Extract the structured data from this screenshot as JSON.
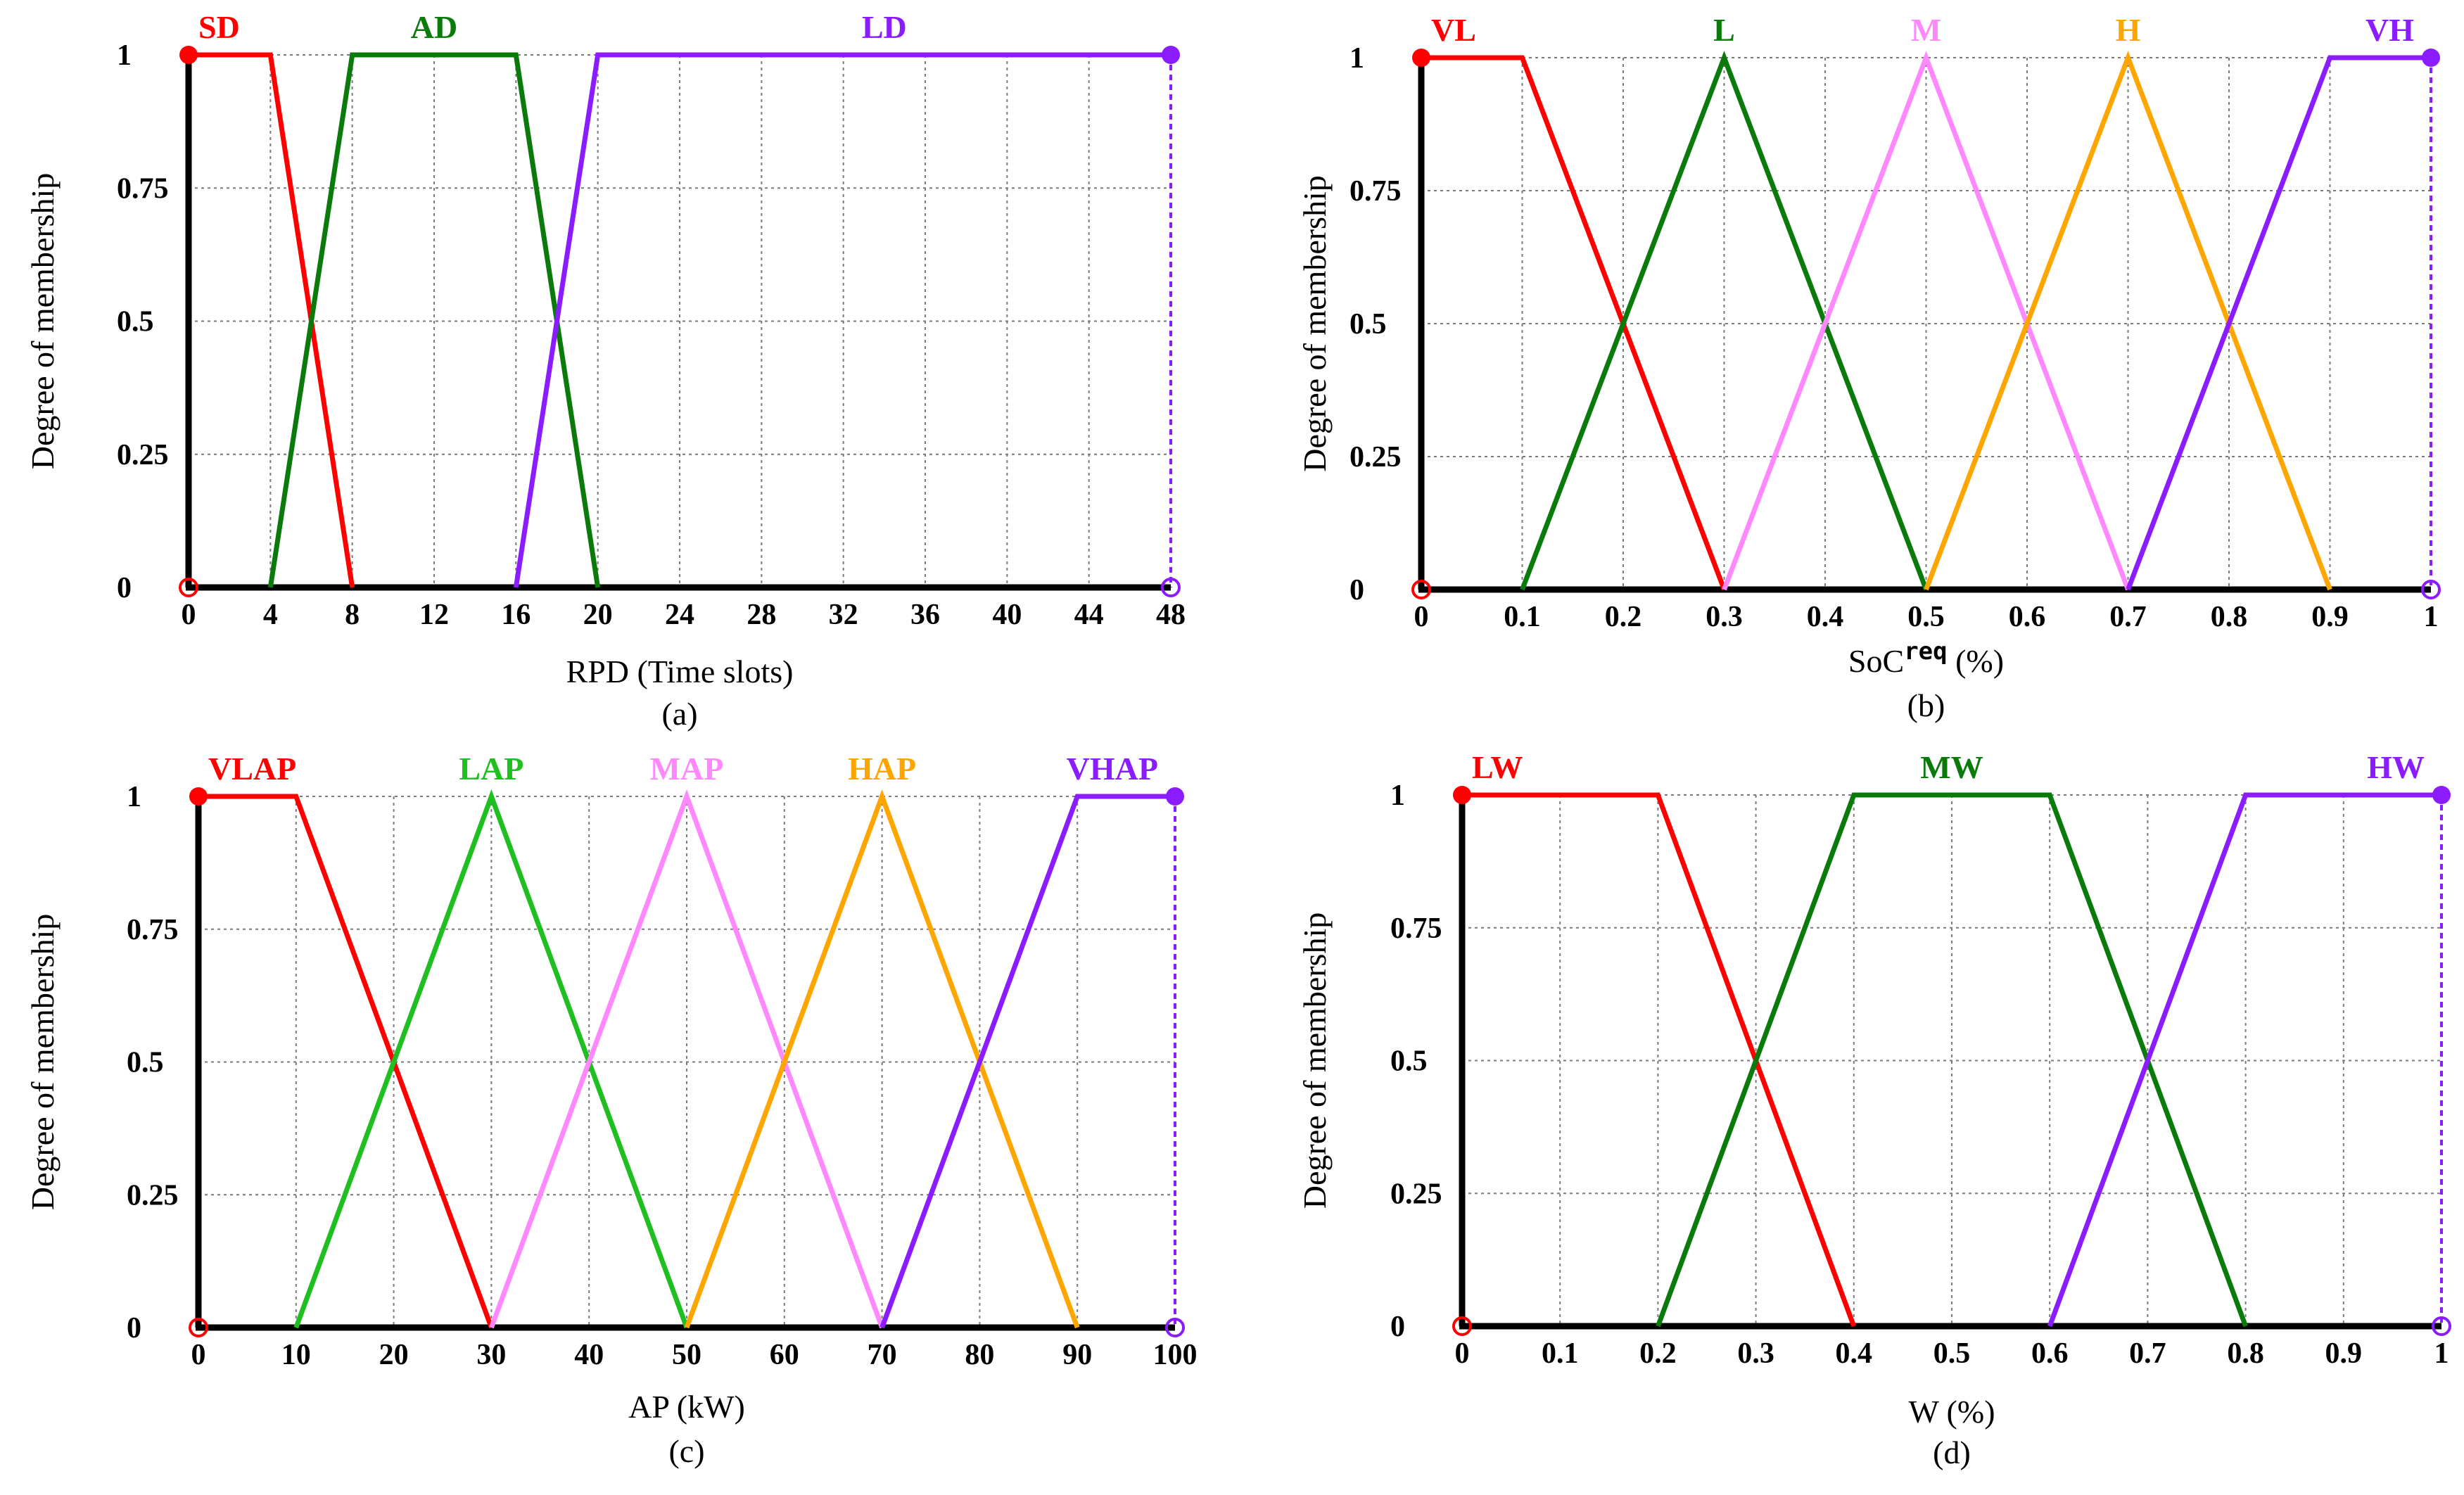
{
  "chart_data": [
    {
      "type": "line",
      "panel_label": "(a)",
      "title": "",
      "xlabel": "RPD (Time slots)",
      "ylabel": "Degree of membership",
      "xlim": [
        0,
        48
      ],
      "ylim": [
        0,
        1
      ],
      "x_tick_mode": "categorical",
      "x_ticks": [
        0,
        4,
        8,
        12,
        16,
        20,
        24,
        28,
        32,
        36,
        40,
        44,
        48
      ],
      "x_tick_labels": [
        "0",
        "4",
        "8",
        "12",
        "16",
        "20",
        "24",
        "28",
        "32",
        "36",
        "40",
        "44",
        "48"
      ],
      "y_ticks": [
        0,
        0.25,
        0.5,
        0.75,
        1
      ],
      "y_tick_labels": [
        "0",
        "0.25",
        "0.5",
        "0.75",
        "1"
      ],
      "grid": true,
      "series": [
        {
          "name": "SD",
          "color": "#ff0000",
          "x": [
            0,
            4,
            8
          ],
          "y": [
            1,
            1,
            0
          ]
        },
        {
          "name": "AD",
          "color": "#0a7a0a",
          "x": [
            4,
            8,
            16,
            20
          ],
          "y": [
            0,
            1,
            1,
            0
          ]
        },
        {
          "name": "LD",
          "color": "#8a1cff",
          "x": [
            16,
            20,
            48
          ],
          "y": [
            0,
            1,
            1
          ]
        }
      ]
    },
    {
      "type": "line",
      "panel_label": "(b)",
      "title": "",
      "xlabel_main": "SoC",
      "xlabel_sup": "req",
      "xlabel_tail": " (%)",
      "ylabel": "Degree of membership",
      "xlim": [
        0,
        1
      ],
      "ylim": [
        0,
        1
      ],
      "x_tick_mode": "linear",
      "x_ticks": [
        0,
        0.1,
        0.2,
        0.3,
        0.4,
        0.5,
        0.6,
        0.7,
        0.8,
        0.9,
        1
      ],
      "x_tick_labels": [
        "0",
        "0.1",
        "0.2",
        "0.3",
        "0.4",
        "0.5",
        "0.6",
        "0.7",
        "0.8",
        "0.9",
        "1"
      ],
      "y_ticks": [
        0,
        0.25,
        0.5,
        0.75,
        1
      ],
      "y_tick_labels": [
        "0",
        "0.25",
        "0.5",
        "0.75",
        "1"
      ],
      "grid": true,
      "series": [
        {
          "name": "VL",
          "color": "#ff0000",
          "x": [
            0,
            0.1,
            0.3
          ],
          "y": [
            1,
            1,
            0
          ]
        },
        {
          "name": "L",
          "color": "#0a7a0a",
          "x": [
            0.1,
            0.3,
            0.5
          ],
          "y": [
            0,
            1,
            0
          ]
        },
        {
          "name": "M",
          "color": "#ff88ff",
          "x": [
            0.3,
            0.5,
            0.7
          ],
          "y": [
            0,
            1,
            0
          ]
        },
        {
          "name": "H",
          "color": "#ffa500",
          "x": [
            0.5,
            0.7,
            0.9
          ],
          "y": [
            0,
            1,
            0
          ]
        },
        {
          "name": "VH",
          "color": "#8a1cff",
          "x": [
            0.7,
            0.9,
            1
          ],
          "y": [
            0,
            1,
            1
          ]
        }
      ]
    },
    {
      "type": "line",
      "panel_label": "(c)",
      "title": "",
      "xlabel": "AP (kW)",
      "ylabel": "Degree of membership",
      "xlim": [
        0,
        100
      ],
      "ylim": [
        0,
        1
      ],
      "x_tick_mode": "linear",
      "x_ticks": [
        0,
        10,
        20,
        30,
        40,
        50,
        60,
        70,
        80,
        90,
        100
      ],
      "x_tick_labels": [
        "0",
        "10",
        "20",
        "30",
        "40",
        "50",
        "60",
        "70",
        "80",
        "90",
        "100"
      ],
      "y_ticks": [
        0,
        0.25,
        0.5,
        0.75,
        1
      ],
      "y_tick_labels": [
        "0",
        "0.25",
        "0.5",
        "0.75",
        "1"
      ],
      "grid": true,
      "series": [
        {
          "name": "VLAP",
          "color": "#ff0000",
          "x": [
            0,
            10,
            30
          ],
          "y": [
            1,
            1,
            0
          ]
        },
        {
          "name": "LAP",
          "color": "#1fbf1f",
          "x": [
            10,
            30,
            50
          ],
          "y": [
            0,
            1,
            0
          ]
        },
        {
          "name": "MAP",
          "color": "#ff88ff",
          "x": [
            30,
            50,
            70
          ],
          "y": [
            0,
            1,
            0
          ]
        },
        {
          "name": "HAP",
          "color": "#ffa500",
          "x": [
            50,
            70,
            90
          ],
          "y": [
            0,
            1,
            0
          ]
        },
        {
          "name": "VHAP",
          "color": "#8a1cff",
          "x": [
            70,
            90,
            100
          ],
          "y": [
            0,
            1,
            1
          ]
        }
      ]
    },
    {
      "type": "line",
      "panel_label": "(d)",
      "title": "",
      "xlabel": "W (%)",
      "ylabel": "Degree of membership",
      "xlim": [
        0,
        1
      ],
      "ylim": [
        0,
        1
      ],
      "x_tick_mode": "linear",
      "x_ticks": [
        0,
        0.1,
        0.2,
        0.3,
        0.4,
        0.5,
        0.6,
        0.7,
        0.8,
        0.9,
        1
      ],
      "x_tick_labels": [
        "0",
        "0.1",
        "0.2",
        "0.3",
        "0.4",
        "0.5",
        "0.6",
        "0.7",
        "0.8",
        "0.9",
        "1"
      ],
      "y_ticks": [
        0,
        0.25,
        0.5,
        0.75,
        1
      ],
      "y_tick_labels": [
        "0",
        "0.25",
        "0.5",
        "0.75",
        "1"
      ],
      "grid": true,
      "series": [
        {
          "name": "LW",
          "color": "#ff0000",
          "x": [
            0,
            0.2,
            0.4
          ],
          "y": [
            1,
            1,
            0
          ]
        },
        {
          "name": "MW",
          "color": "#0a7a0a",
          "x": [
            0.2,
            0.4,
            0.6,
            0.8
          ],
          "y": [
            0,
            1,
            1,
            0
          ]
        },
        {
          "name": "HW",
          "color": "#8a1cff",
          "x": [
            0.6,
            0.8,
            1
          ],
          "y": [
            0,
            1,
            1
          ]
        }
      ]
    }
  ]
}
